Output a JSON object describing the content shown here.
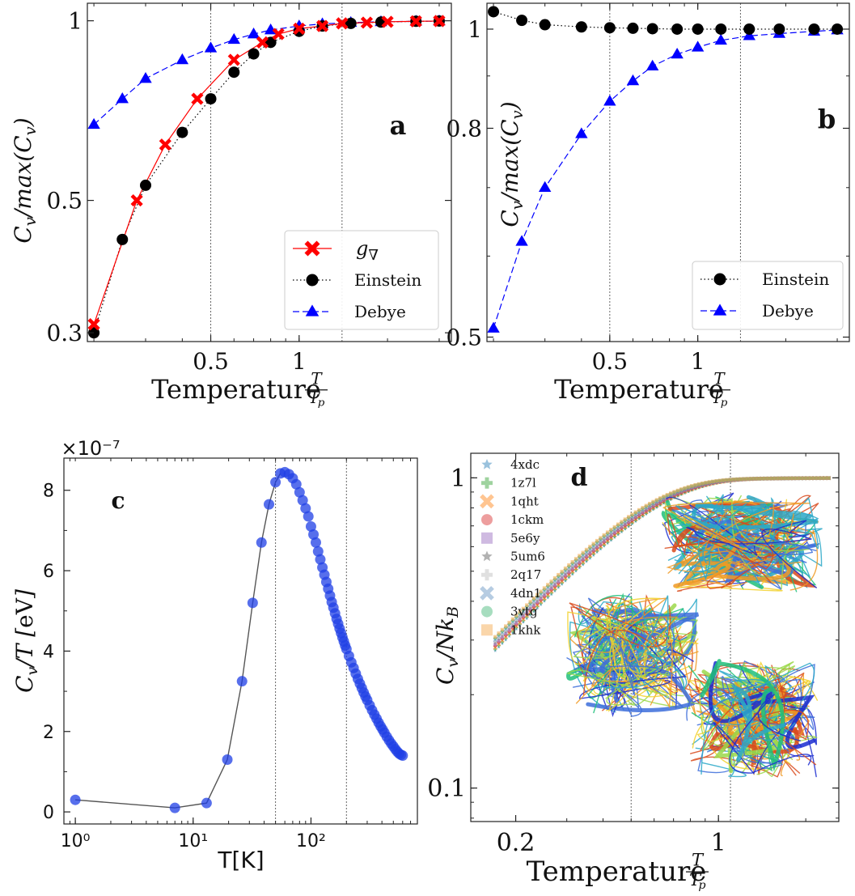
{
  "figure": {
    "panels": [
      "a",
      "b",
      "c",
      "d"
    ]
  },
  "chart_data": [
    {
      "panel": "a",
      "type": "line",
      "panel_label": "a",
      "xlabel": "Temperature T/Tp",
      "ylabel": "Cv/max(Cv)",
      "xscale": "log",
      "yscale": "log",
      "xlim": [
        0.19,
        3.3
      ],
      "ylim": [
        0.29,
        1.07
      ],
      "xticks": [
        {
          "v": 0.5,
          "label": "0.5"
        },
        {
          "v": 1,
          "label": "1"
        }
      ],
      "yticks": [
        {
          "v": 0.3,
          "label": "0.3"
        },
        {
          "v": 0.5,
          "label": "0.5"
        },
        {
          "v": 1,
          "label": "1"
        }
      ],
      "vlines": [
        0.5,
        1.4
      ],
      "legend_placement": "lower-right",
      "series": [
        {
          "name": "g∇",
          "color": "#ff0000",
          "marker": "x",
          "linestyle": "solid",
          "x": [
            0.2,
            0.28,
            0.35,
            0.45,
            0.6,
            0.75,
            0.85,
            1.0,
            1.2,
            1.4,
            1.7,
            2.0,
            2.5,
            3.0
          ],
          "y": [
            0.31,
            0.5,
            0.62,
            0.74,
            0.86,
            0.92,
            0.95,
            0.97,
            0.98,
            0.99,
            0.993,
            0.996,
            0.998,
            0.999
          ]
        },
        {
          "name": "Einstein",
          "color": "#000000",
          "marker": "o",
          "linestyle": "dotted",
          "x": [
            0.2,
            0.25,
            0.3,
            0.4,
            0.5,
            0.6,
            0.7,
            0.8,
            1.0,
            1.2,
            1.5,
            1.9,
            2.5,
            3.0
          ],
          "y": [
            0.3,
            0.43,
            0.53,
            0.65,
            0.74,
            0.82,
            0.88,
            0.92,
            0.96,
            0.98,
            0.99,
            0.995,
            0.998,
            0.999
          ]
        },
        {
          "name": "Debye",
          "color": "#0000ff",
          "marker": "^",
          "linestyle": "dashed",
          "x": [
            0.2,
            0.25,
            0.3,
            0.4,
            0.5,
            0.6,
            0.7,
            0.8,
            1.0,
            1.2,
            1.5,
            1.9,
            2.5,
            3.0
          ],
          "y": [
            0.67,
            0.74,
            0.8,
            0.86,
            0.9,
            0.93,
            0.95,
            0.965,
            0.98,
            0.988,
            0.993,
            0.996,
            0.998,
            0.999
          ]
        }
      ]
    },
    {
      "panel": "b",
      "type": "line",
      "panel_label": "b",
      "xlabel": "Temperature T/Tp",
      "ylabel": "Cv/max(Cv)",
      "xscale": "log",
      "yscale": "log",
      "xlim": [
        0.19,
        3.3
      ],
      "ylim": [
        0.495,
        1.06
      ],
      "xticks": [
        {
          "v": 0.5,
          "label": "0.5"
        },
        {
          "v": 1,
          "label": "1"
        }
      ],
      "yticks": [
        {
          "v": 0.5,
          "label": "0.5"
        },
        {
          "v": 0.8,
          "label": "0.8"
        },
        {
          "v": 1,
          "label": "1"
        }
      ],
      "vlines": [
        0.5,
        1.4
      ],
      "legend_placement": "lower-right",
      "series": [
        {
          "name": "Einstein",
          "color": "#000000",
          "marker": "o",
          "linestyle": "dotted",
          "x": [
            0.2,
            0.25,
            0.3,
            0.4,
            0.5,
            0.6,
            0.7,
            0.85,
            1.0,
            1.2,
            1.5,
            1.9,
            2.5,
            3.0
          ],
          "y": [
            1.04,
            1.02,
            1.01,
            1.005,
            1.003,
            1.002,
            1.001,
            1.0,
            1.0,
            1.0,
            1.0,
            1.0,
            1.0,
            1.0
          ]
        },
        {
          "name": "Debye",
          "color": "#0000ff",
          "marker": "^",
          "linestyle": "dashed",
          "x": [
            0.2,
            0.25,
            0.3,
            0.4,
            0.5,
            0.6,
            0.7,
            0.85,
            1.0,
            1.2,
            1.5,
            1.9,
            2.5,
            3.0
          ],
          "y": [
            0.51,
            0.62,
            0.7,
            0.79,
            0.85,
            0.89,
            0.92,
            0.945,
            0.96,
            0.975,
            0.985,
            0.99,
            0.995,
            0.998
          ]
        }
      ]
    },
    {
      "panel": "c",
      "type": "scatter",
      "panel_label": "c",
      "xlabel": "T[K]",
      "ylabel": "Cv/T [eV]",
      "offset_label": "×10⁻⁷",
      "xscale": "log",
      "yscale": "linear",
      "xlim": [
        0.8,
        800
      ],
      "ylim": [
        -0.3,
        8.8
      ],
      "xticks": [
        {
          "v": 1,
          "label": "10⁰"
        },
        {
          "v": 10,
          "label": "10¹"
        },
        {
          "v": 100,
          "label": "10²"
        }
      ],
      "yticks": [
        {
          "v": 0,
          "label": "0"
        },
        {
          "v": 2,
          "label": "2"
        },
        {
          "v": 4,
          "label": "4"
        },
        {
          "v": 6,
          "label": "6"
        },
        {
          "v": 8,
          "label": "8"
        }
      ],
      "vlines": [
        50,
        200
      ],
      "series": [
        {
          "name": "",
          "color": "#1f3fe6",
          "x": [
            1.0,
            7.0,
            13.0,
            19.5,
            26,
            32,
            38,
            44,
            50,
            55,
            60,
            65,
            70,
            75,
            80,
            85,
            90,
            95,
            100,
            105,
            110,
            115,
            120,
            125,
            130,
            135,
            140,
            145,
            150,
            155,
            160,
            165,
            170,
            175,
            180,
            185,
            190,
            195,
            200,
            210,
            220,
            230,
            240,
            250,
            260,
            270,
            280,
            290,
            300,
            315,
            330,
            345,
            360,
            375,
            390,
            405,
            420,
            440,
            460,
            480,
            500,
            520,
            540,
            560,
            580,
            600
          ],
          "y": [
            0.3,
            0.1,
            0.22,
            1.3,
            3.25,
            5.2,
            6.7,
            7.65,
            8.2,
            8.42,
            8.45,
            8.4,
            8.3,
            8.15,
            7.95,
            7.75,
            7.55,
            7.35,
            7.1,
            6.9,
            6.7,
            6.48,
            6.28,
            6.08,
            5.9,
            5.72,
            5.55,
            5.38,
            5.22,
            5.08,
            4.94,
            4.8,
            4.68,
            4.56,
            4.45,
            4.34,
            4.24,
            4.14,
            4.05,
            3.88,
            3.72,
            3.58,
            3.44,
            3.31,
            3.19,
            3.08,
            2.97,
            2.87,
            2.78,
            2.65,
            2.53,
            2.42,
            2.32,
            2.22,
            2.13,
            2.05,
            1.97,
            1.87,
            1.78,
            1.7,
            1.63,
            1.56,
            1.5,
            1.45,
            1.42,
            1.4
          ]
        }
      ]
    },
    {
      "panel": "d",
      "type": "scatter",
      "panel_label": "d",
      "xlabel": "Temperature T/Tp",
      "ylabel": "Cv/NkB",
      "xscale": "log",
      "yscale": "log",
      "xlim": [
        0.14,
        2.6
      ],
      "ylim": [
        0.078,
        1.2
      ],
      "xticks": [
        {
          "v": 0.2,
          "label": "0.2"
        },
        {
          "v": 1,
          "label": "1"
        }
      ],
      "yticks": [
        {
          "v": 0.1,
          "label": "0.1"
        },
        {
          "v": 1,
          "label": "1"
        }
      ],
      "vlines": [
        0.5,
        1.1
      ],
      "legend_placement": "upper-left",
      "series": [
        {
          "name": "4xdc",
          "color": "#1f77b4",
          "marker": "star"
        },
        {
          "name": "1z7l",
          "color": "#2ca02c",
          "marker": "plus"
        },
        {
          "name": "1qht",
          "color": "#ff7f0e",
          "marker": "x"
        },
        {
          "name": "1ckm",
          "color": "#d62728",
          "marker": "o"
        },
        {
          "name": "5e6y",
          "color": "#9467bd",
          "marker": "s"
        },
        {
          "name": "5um6",
          "color": "#555555",
          "marker": "star"
        },
        {
          "name": "2q17",
          "color": "#bbbbbb",
          "marker": "plus"
        },
        {
          "name": "4dn1",
          "color": "#5f8fbf",
          "marker": "x"
        },
        {
          "name": "3vtg",
          "color": "#3cb371",
          "marker": "o"
        },
        {
          "name": "1khk",
          "color": "#f4a442",
          "marker": "s"
        }
      ]
    }
  ]
}
